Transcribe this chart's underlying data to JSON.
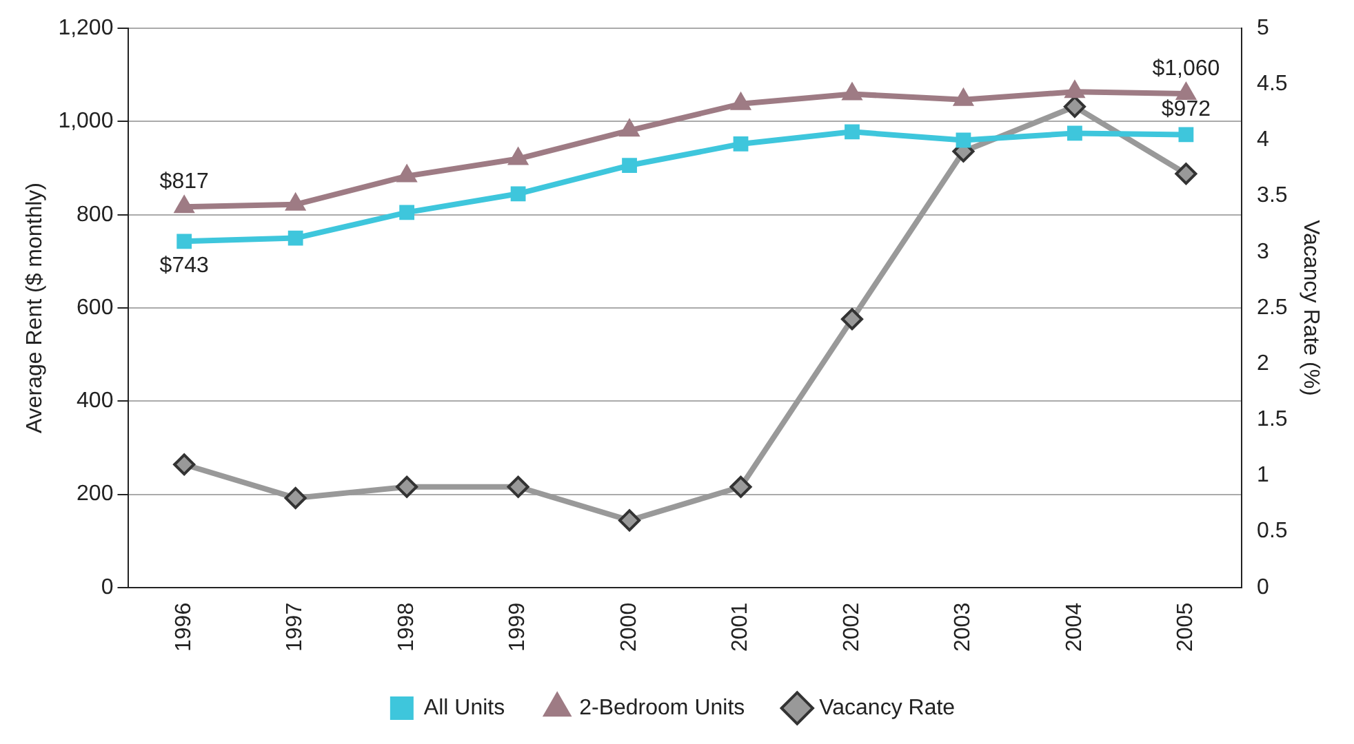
{
  "chart_data": {
    "type": "line",
    "ylabel": "Average Rent ($ monthly)",
    "y2label": "Vacancy Rate (%)",
    "categories": [
      "1996",
      "1997",
      "1998",
      "1999",
      "2000",
      "2001",
      "2002",
      "2003",
      "2004",
      "2005"
    ],
    "series": [
      {
        "name": "All Units",
        "color": "#3ec6dc",
        "marker": "square",
        "values": [
          743,
          750,
          805,
          845,
          906,
          952,
          978,
          960,
          975,
          972
        ],
        "value_labels": [
          "$743",
          null,
          null,
          null,
          null,
          null,
          null,
          null,
          null,
          "$972"
        ]
      },
      {
        "name": "2-Bedroom Units",
        "color": "#9e7b84",
        "marker": "triangle",
        "values": [
          817,
          822,
          883,
          920,
          981,
          1038,
          1059,
          1047,
          1064,
          1060
        ],
        "value_labels": [
          "$817",
          null,
          null,
          null,
          null,
          null,
          null,
          null,
          null,
          "$1,060"
        ]
      },
      {
        "name": "Vacancy Rate",
        "color": "#999999",
        "marker": "diamond",
        "axis": "y2",
        "values": [
          1.1,
          0.8,
          0.9,
          0.9,
          0.6,
          0.9,
          2.4,
          3.9,
          4.3,
          3.7
        ]
      }
    ],
    "ylim": [
      0,
      1200
    ],
    "yticks": [
      0,
      200,
      400,
      600,
      800,
      {
        "value": 1000,
        "label": "1,000"
      },
      {
        "value": 1200,
        "label": "1,200"
      }
    ],
    "y2lim": [
      0,
      5
    ],
    "y2ticks": [
      0,
      0.5,
      1,
      1.5,
      2,
      2.5,
      3,
      3.5,
      4,
      4.5,
      5
    ],
    "grid": "y",
    "legend": "bottom",
    "line_style": "solid"
  }
}
